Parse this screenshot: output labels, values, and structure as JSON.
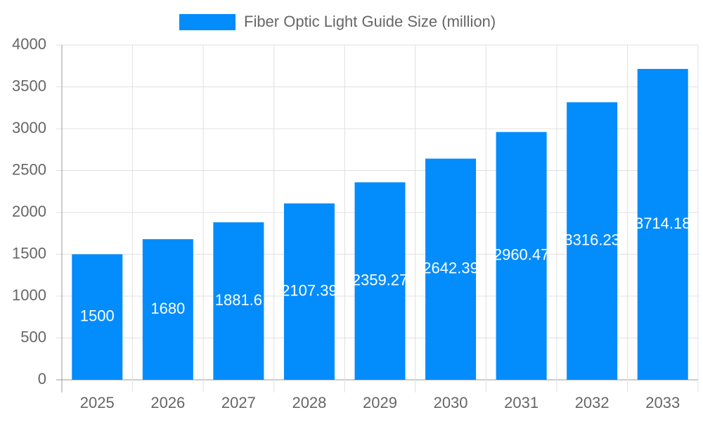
{
  "chart_data": {
    "type": "bar",
    "series": [
      {
        "name": "Fiber Optic Light Guide Size (million)",
        "color": "#038cfc",
        "values": [
          1500,
          1680,
          1881.6,
          2107.39,
          2359.27,
          2642.39,
          2960.47,
          3316.23,
          3714.18
        ]
      }
    ],
    "categories": [
      "2025",
      "2026",
      "2027",
      "2028",
      "2029",
      "2030",
      "2031",
      "2032",
      "2033"
    ],
    "ylim": [
      0,
      4000
    ],
    "yticks": [
      0,
      500,
      1000,
      1500,
      2000,
      2500,
      3000,
      3500,
      4000
    ],
    "grid": true,
    "legend": "top"
  }
}
